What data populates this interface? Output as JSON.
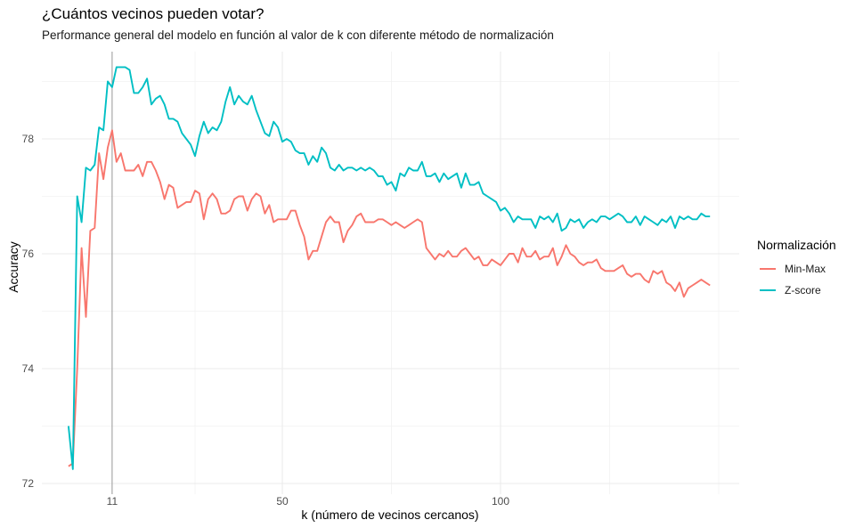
{
  "chart_data": {
    "type": "line",
    "title": "¿Cuántos vecinos pueden votar?",
    "subtitle": "Performance general del modelo en función al valor de k con diferente método de normalización",
    "xlabel": "k (número de vecinos cercanos)",
    "ylabel": "Accuracy",
    "xlim": [
      0,
      157
    ],
    "ylim": [
      72,
      79.8
    ],
    "x_ticks": [
      11,
      50,
      100
    ],
    "x_tick_labels": [
      "11",
      "50",
      "100"
    ],
    "x_minor_grid": [
      30,
      75,
      125,
      150
    ],
    "y_ticks": [
      72,
      74,
      76,
      78
    ],
    "y_tick_labels": [
      "72",
      "74",
      "76",
      "78"
    ],
    "y_minor_grid": [
      73,
      75,
      77,
      79
    ],
    "grid": true,
    "vline": 11,
    "legend": {
      "title": "Normalización",
      "position": "right"
    },
    "series": [
      {
        "name": "Min-Max",
        "color": "#F8766D",
        "points": [
          [
            1,
            72.3
          ],
          [
            2,
            72.35
          ],
          [
            3,
            74.0
          ],
          [
            4,
            76.1
          ],
          [
            5,
            74.9
          ],
          [
            6,
            76.4
          ],
          [
            7,
            76.45
          ],
          [
            8,
            77.75
          ],
          [
            9,
            77.3
          ],
          [
            10,
            77.85
          ],
          [
            11,
            78.15
          ],
          [
            12,
            77.6
          ],
          [
            13,
            77.75
          ],
          [
            14,
            77.45
          ],
          [
            16,
            77.45
          ],
          [
            17,
            77.55
          ],
          [
            18,
            77.35
          ],
          [
            19,
            77.6
          ],
          [
            20,
            77.6
          ],
          [
            21,
            77.45
          ],
          [
            22,
            77.25
          ],
          [
            23,
            76.95
          ],
          [
            24,
            77.2
          ],
          [
            25,
            77.15
          ],
          [
            26,
            76.8
          ],
          [
            27,
            76.85
          ],
          [
            28,
            76.9
          ],
          [
            29,
            76.9
          ],
          [
            30,
            77.1
          ],
          [
            31,
            77.05
          ],
          [
            32,
            76.6
          ],
          [
            33,
            76.95
          ],
          [
            34,
            77.05
          ],
          [
            35,
            76.95
          ],
          [
            36,
            76.7
          ],
          [
            37,
            76.7
          ],
          [
            38,
            76.75
          ],
          [
            39,
            76.95
          ],
          [
            40,
            77.0
          ],
          [
            41,
            77.0
          ],
          [
            42,
            76.75
          ],
          [
            43,
            76.95
          ],
          [
            44,
            77.05
          ],
          [
            45,
            77.0
          ],
          [
            46,
            76.7
          ],
          [
            47,
            76.85
          ],
          [
            48,
            76.55
          ],
          [
            49,
            76.6
          ],
          [
            50,
            76.6
          ],
          [
            51,
            76.6
          ],
          [
            52,
            76.75
          ],
          [
            53,
            76.75
          ],
          [
            54,
            76.5
          ],
          [
            55,
            76.3
          ],
          [
            56,
            75.9
          ],
          [
            57,
            76.05
          ],
          [
            58,
            76.05
          ],
          [
            59,
            76.3
          ],
          [
            60,
            76.55
          ],
          [
            61,
            76.65
          ],
          [
            62,
            76.55
          ],
          [
            63,
            76.55
          ],
          [
            64,
            76.2
          ],
          [
            65,
            76.4
          ],
          [
            66,
            76.5
          ],
          [
            67,
            76.65
          ],
          [
            68,
            76.7
          ],
          [
            69,
            76.55
          ],
          [
            70,
            76.55
          ],
          [
            71,
            76.55
          ],
          [
            72,
            76.6
          ],
          [
            73,
            76.6
          ],
          [
            74,
            76.55
          ],
          [
            75,
            76.5
          ],
          [
            76,
            76.55
          ],
          [
            77,
            76.5
          ],
          [
            78,
            76.45
          ],
          [
            79,
            76.5
          ],
          [
            80,
            76.55
          ],
          [
            81,
            76.6
          ],
          [
            82,
            76.55
          ],
          [
            83,
            76.1
          ],
          [
            84,
            76.0
          ],
          [
            85,
            75.9
          ],
          [
            86,
            76.0
          ],
          [
            87,
            75.95
          ],
          [
            88,
            76.05
          ],
          [
            89,
            75.95
          ],
          [
            90,
            75.95
          ],
          [
            91,
            76.05
          ],
          [
            92,
            76.1
          ],
          [
            93,
            76.0
          ],
          [
            94,
            75.9
          ],
          [
            95,
            75.95
          ],
          [
            96,
            75.8
          ],
          [
            97,
            75.8
          ],
          [
            98,
            75.9
          ],
          [
            99,
            75.85
          ],
          [
            100,
            75.8
          ],
          [
            101,
            75.9
          ],
          [
            102,
            76.0
          ],
          [
            103,
            76.0
          ],
          [
            104,
            75.85
          ],
          [
            105,
            76.1
          ],
          [
            106,
            75.95
          ],
          [
            107,
            75.95
          ],
          [
            108,
            76.05
          ],
          [
            109,
            75.9
          ],
          [
            110,
            75.95
          ],
          [
            111,
            75.95
          ],
          [
            112,
            76.1
          ],
          [
            113,
            75.8
          ],
          [
            114,
            75.95
          ],
          [
            115,
            76.15
          ],
          [
            116,
            76.0
          ],
          [
            117,
            75.95
          ],
          [
            118,
            75.85
          ],
          [
            119,
            75.8
          ],
          [
            120,
            75.85
          ],
          [
            121,
            75.85
          ],
          [
            122,
            75.9
          ],
          [
            123,
            75.75
          ],
          [
            124,
            75.7
          ],
          [
            125,
            75.7
          ],
          [
            126,
            75.7
          ],
          [
            127,
            75.75
          ],
          [
            128,
            75.8
          ],
          [
            129,
            75.65
          ],
          [
            130,
            75.6
          ],
          [
            131,
            75.65
          ],
          [
            132,
            75.65
          ],
          [
            133,
            75.55
          ],
          [
            134,
            75.5
          ],
          [
            135,
            75.7
          ],
          [
            136,
            75.65
          ],
          [
            137,
            75.7
          ],
          [
            138,
            75.5
          ],
          [
            139,
            75.45
          ],
          [
            140,
            75.35
          ],
          [
            141,
            75.5
          ],
          [
            142,
            75.25
          ],
          [
            143,
            75.4
          ],
          [
            144,
            75.45
          ],
          [
            145,
            75.5
          ],
          [
            146,
            75.55
          ],
          [
            147,
            75.5
          ],
          [
            148,
            75.45
          ]
        ]
      },
      {
        "name": "Z-score",
        "color": "#00BFC4",
        "points": [
          [
            1,
            73.0
          ],
          [
            2,
            72.25
          ],
          [
            3,
            77.0
          ],
          [
            4,
            76.55
          ],
          [
            5,
            77.5
          ],
          [
            6,
            77.45
          ],
          [
            7,
            77.55
          ],
          [
            8,
            78.2
          ],
          [
            9,
            78.15
          ],
          [
            10,
            79.0
          ],
          [
            11,
            78.9
          ],
          [
            12,
            79.25
          ],
          [
            13,
            79.25
          ],
          [
            14,
            79.25
          ],
          [
            15,
            79.2
          ],
          [
            16,
            78.8
          ],
          [
            17,
            78.8
          ],
          [
            18,
            78.9
          ],
          [
            19,
            79.05
          ],
          [
            20,
            78.6
          ],
          [
            21,
            78.7
          ],
          [
            22,
            78.75
          ],
          [
            23,
            78.6
          ],
          [
            24,
            78.35
          ],
          [
            25,
            78.35
          ],
          [
            26,
            78.3
          ],
          [
            27,
            78.1
          ],
          [
            28,
            78.0
          ],
          [
            29,
            77.9
          ],
          [
            30,
            77.7
          ],
          [
            31,
            78.05
          ],
          [
            32,
            78.3
          ],
          [
            33,
            78.1
          ],
          [
            34,
            78.2
          ],
          [
            35,
            78.15
          ],
          [
            36,
            78.3
          ],
          [
            37,
            78.65
          ],
          [
            38,
            78.9
          ],
          [
            39,
            78.6
          ],
          [
            40,
            78.75
          ],
          [
            41,
            78.65
          ],
          [
            42,
            78.6
          ],
          [
            43,
            78.75
          ],
          [
            44,
            78.5
          ],
          [
            45,
            78.3
          ],
          [
            46,
            78.1
          ],
          [
            47,
            78.05
          ],
          [
            48,
            78.3
          ],
          [
            49,
            78.2
          ],
          [
            50,
            77.95
          ],
          [
            51,
            78.0
          ],
          [
            52,
            77.95
          ],
          [
            53,
            77.8
          ],
          [
            54,
            77.75
          ],
          [
            55,
            77.75
          ],
          [
            56,
            77.55
          ],
          [
            57,
            77.7
          ],
          [
            58,
            77.6
          ],
          [
            59,
            77.85
          ],
          [
            60,
            77.75
          ],
          [
            61,
            77.5
          ],
          [
            62,
            77.45
          ],
          [
            63,
            77.55
          ],
          [
            64,
            77.45
          ],
          [
            65,
            77.5
          ],
          [
            66,
            77.5
          ],
          [
            67,
            77.45
          ],
          [
            68,
            77.5
          ],
          [
            69,
            77.45
          ],
          [
            70,
            77.5
          ],
          [
            71,
            77.45
          ],
          [
            72,
            77.35
          ],
          [
            73,
            77.35
          ],
          [
            74,
            77.2
          ],
          [
            75,
            77.25
          ],
          [
            76,
            77.1
          ],
          [
            77,
            77.4
          ],
          [
            78,
            77.35
          ],
          [
            79,
            77.5
          ],
          [
            80,
            77.45
          ],
          [
            81,
            77.45
          ],
          [
            82,
            77.6
          ],
          [
            83,
            77.35
          ],
          [
            84,
            77.35
          ],
          [
            85,
            77.4
          ],
          [
            86,
            77.25
          ],
          [
            87,
            77.4
          ],
          [
            88,
            77.3
          ],
          [
            89,
            77.35
          ],
          [
            90,
            77.4
          ],
          [
            91,
            77.15
          ],
          [
            92,
            77.4
          ],
          [
            93,
            77.2
          ],
          [
            94,
            77.2
          ],
          [
            95,
            77.25
          ],
          [
            96,
            77.05
          ],
          [
            97,
            77.0
          ],
          [
            98,
            76.95
          ],
          [
            99,
            76.9
          ],
          [
            100,
            76.75
          ],
          [
            101,
            76.8
          ],
          [
            102,
            76.7
          ],
          [
            103,
            76.55
          ],
          [
            104,
            76.65
          ],
          [
            105,
            76.6
          ],
          [
            106,
            76.6
          ],
          [
            107,
            76.6
          ],
          [
            108,
            76.45
          ],
          [
            109,
            76.65
          ],
          [
            110,
            76.6
          ],
          [
            111,
            76.65
          ],
          [
            112,
            76.55
          ],
          [
            113,
            76.7
          ],
          [
            114,
            76.4
          ],
          [
            115,
            76.45
          ],
          [
            116,
            76.6
          ],
          [
            117,
            76.55
          ],
          [
            118,
            76.6
          ],
          [
            119,
            76.45
          ],
          [
            120,
            76.55
          ],
          [
            121,
            76.6
          ],
          [
            122,
            76.55
          ],
          [
            123,
            76.65
          ],
          [
            124,
            76.65
          ],
          [
            125,
            76.6
          ],
          [
            126,
            76.65
          ],
          [
            127,
            76.7
          ],
          [
            128,
            76.65
          ],
          [
            129,
            76.55
          ],
          [
            130,
            76.55
          ],
          [
            131,
            76.65
          ],
          [
            132,
            76.5
          ],
          [
            133,
            76.65
          ],
          [
            134,
            76.6
          ],
          [
            135,
            76.55
          ],
          [
            136,
            76.5
          ],
          [
            137,
            76.6
          ],
          [
            138,
            76.55
          ],
          [
            139,
            76.65
          ],
          [
            140,
            76.45
          ],
          [
            141,
            76.65
          ],
          [
            142,
            76.6
          ],
          [
            143,
            76.65
          ],
          [
            144,
            76.6
          ],
          [
            145,
            76.6
          ],
          [
            146,
            76.7
          ],
          [
            147,
            76.65
          ],
          [
            148,
            76.65
          ]
        ]
      }
    ]
  }
}
